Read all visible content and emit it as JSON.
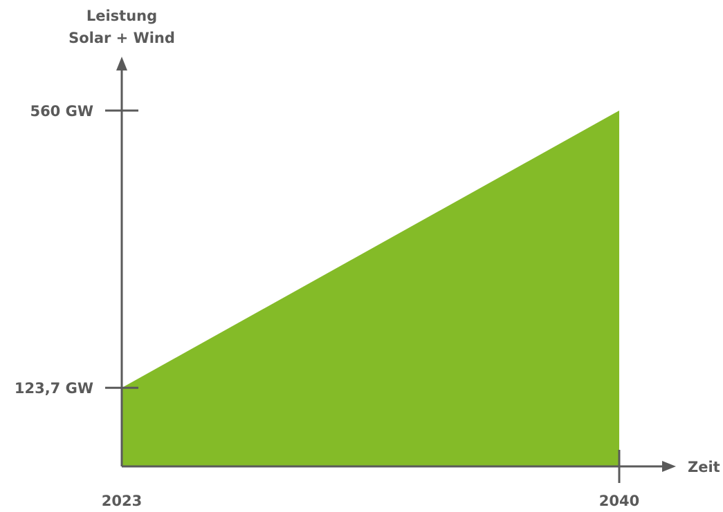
{
  "chart_data": {
    "type": "area",
    "title": "",
    "ylabel_lines": [
      "Leistung",
      "Solar + Wind"
    ],
    "xlabel": "Zeit",
    "x_tick_labels": [
      "2023",
      "2040"
    ],
    "y_tick_labels": [
      "123,7 GW",
      "560 GW"
    ],
    "x": [
      2023,
      2040
    ],
    "y": [
      123.7,
      560
    ],
    "unit": "GW",
    "xlim": [
      2023,
      2040
    ],
    "ylim": [
      0,
      560
    ],
    "grid": false,
    "legend": "none",
    "fill_color": "#84bb28",
    "axis_color": "#5a5a5a"
  }
}
